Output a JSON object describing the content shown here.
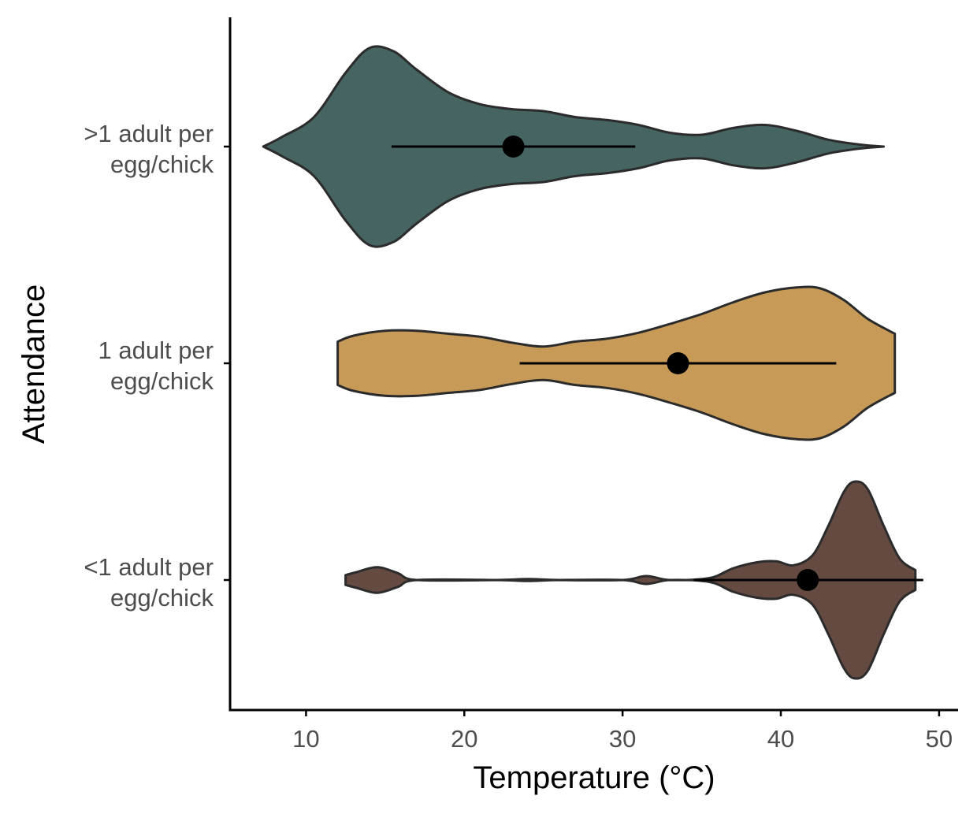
{
  "chart_data": {
    "type": "violin",
    "xlabel": "Temperature (°C)",
    "ylabel": "Attendance",
    "xlim": [
      5.2,
      51.2
    ],
    "x_ticks": [
      10,
      20,
      30,
      40,
      50
    ],
    "grid": false,
    "legend": "none",
    "categories": [
      ">1 adult per egg/chick",
      "1 adult per egg/chick",
      "<1 adult per egg/chick"
    ],
    "y_tick_labels": [
      [
        ">1 adult per",
        "egg/chick"
      ],
      [
        "1 adult per",
        "egg/chick"
      ],
      [
        "<1 adult per",
        "egg/chick"
      ]
    ],
    "series": [
      {
        "category": ">1 adult per egg/chick",
        "color": "#466461",
        "min": 7.3,
        "max": 46.5,
        "mean": 23.1,
        "interval": [
          15.4,
          30.8
        ],
        "density": [
          [
            7.3,
            0.0
          ],
          [
            8.5,
            0.1
          ],
          [
            10.5,
            0.3
          ],
          [
            12.5,
            0.75
          ],
          [
            14.0,
            1.0
          ],
          [
            15.5,
            0.97
          ],
          [
            17.0,
            0.78
          ],
          [
            19.0,
            0.55
          ],
          [
            21.0,
            0.43
          ],
          [
            23.0,
            0.38
          ],
          [
            25.0,
            0.36
          ],
          [
            27.0,
            0.3
          ],
          [
            29.0,
            0.27
          ],
          [
            31.0,
            0.22
          ],
          [
            33.0,
            0.14
          ],
          [
            35.0,
            0.12
          ],
          [
            37.0,
            0.19
          ],
          [
            39.0,
            0.22
          ],
          [
            41.0,
            0.16
          ],
          [
            43.0,
            0.07
          ],
          [
            45.0,
            0.02
          ],
          [
            46.5,
            0.0
          ]
        ]
      },
      {
        "category": "1 adult per egg/chick",
        "color": "#C79A58",
        "min": 12.0,
        "max": 47.2,
        "mean": 33.5,
        "interval": [
          23.5,
          43.5
        ],
        "density": [
          [
            12.0,
            0.22
          ],
          [
            13.0,
            0.28
          ],
          [
            15.0,
            0.33
          ],
          [
            17.0,
            0.33
          ],
          [
            19.0,
            0.3
          ],
          [
            21.0,
            0.27
          ],
          [
            23.0,
            0.21
          ],
          [
            25.0,
            0.17
          ],
          [
            27.0,
            0.22
          ],
          [
            29.0,
            0.25
          ],
          [
            31.0,
            0.31
          ],
          [
            33.0,
            0.4
          ],
          [
            35.0,
            0.5
          ],
          [
            37.0,
            0.62
          ],
          [
            39.0,
            0.72
          ],
          [
            41.0,
            0.77
          ],
          [
            42.5,
            0.76
          ],
          [
            44.0,
            0.64
          ],
          [
            45.5,
            0.45
          ],
          [
            47.2,
            0.3
          ]
        ]
      },
      {
        "category": "<1 adult per egg/chick",
        "color": "#654A42",
        "min": 12.5,
        "max": 48.5,
        "mean": 41.7,
        "interval": [
          34.5,
          49.0
        ],
        "density": [
          [
            12.5,
            0.05
          ],
          [
            13.2,
            0.08
          ],
          [
            14.5,
            0.13
          ],
          [
            15.8,
            0.07
          ],
          [
            17.0,
            0.0
          ],
          [
            22.0,
            0.0
          ],
          [
            24.0,
            0.01
          ],
          [
            26.0,
            0.0
          ],
          [
            30.0,
            0.0
          ],
          [
            31.5,
            0.04
          ],
          [
            33.0,
            0.0
          ],
          [
            35.5,
            0.02
          ],
          [
            37.0,
            0.12
          ],
          [
            38.5,
            0.18
          ],
          [
            39.7,
            0.19
          ],
          [
            40.8,
            0.15
          ],
          [
            42.0,
            0.25
          ],
          [
            43.0,
            0.55
          ],
          [
            44.0,
            0.9
          ],
          [
            44.7,
            1.0
          ],
          [
            45.5,
            0.92
          ],
          [
            46.5,
            0.55
          ],
          [
            47.5,
            0.22
          ],
          [
            48.5,
            0.1
          ]
        ]
      }
    ]
  }
}
